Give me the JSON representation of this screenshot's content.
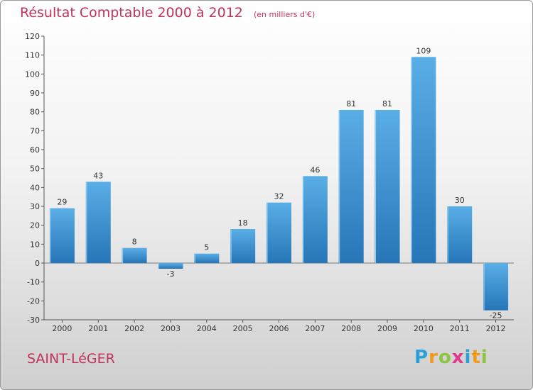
{
  "title": "Résultat Comptable 2000 à 2012",
  "subtitle": "(en milliers d'€)",
  "commune": "SAINT-LéGER",
  "logo": {
    "text": "Proxiti",
    "letters": [
      {
        "ch": "P",
        "color": "#2aa0d8"
      },
      {
        "ch": "r",
        "color": "#f09a1a"
      },
      {
        "ch": "o",
        "color": "#8cc63f"
      },
      {
        "ch": "x",
        "color": "#e23a8a"
      },
      {
        "ch": "i",
        "color": "#2aa0d8"
      },
      {
        "ch": "t",
        "color": "#f09a1a"
      },
      {
        "ch": "i",
        "color": "#8cc63f"
      }
    ]
  },
  "chart_data": {
    "type": "bar",
    "categories": [
      "2000",
      "2001",
      "2002",
      "2003",
      "2004",
      "2005",
      "2006",
      "2007",
      "2008",
      "2009",
      "2010",
      "2011",
      "2012"
    ],
    "values": [
      29,
      43,
      8,
      -3,
      5,
      18,
      32,
      46,
      81,
      81,
      109,
      30,
      -25
    ],
    "ylim": [
      -30,
      120
    ],
    "yticks": [
      -30,
      -20,
      -10,
      0,
      10,
      20,
      30,
      40,
      50,
      60,
      70,
      80,
      90,
      100,
      110,
      120
    ],
    "grid": false,
    "bar_color_top": "#5aaee6",
    "bar_color_bottom": "#2676b8"
  }
}
